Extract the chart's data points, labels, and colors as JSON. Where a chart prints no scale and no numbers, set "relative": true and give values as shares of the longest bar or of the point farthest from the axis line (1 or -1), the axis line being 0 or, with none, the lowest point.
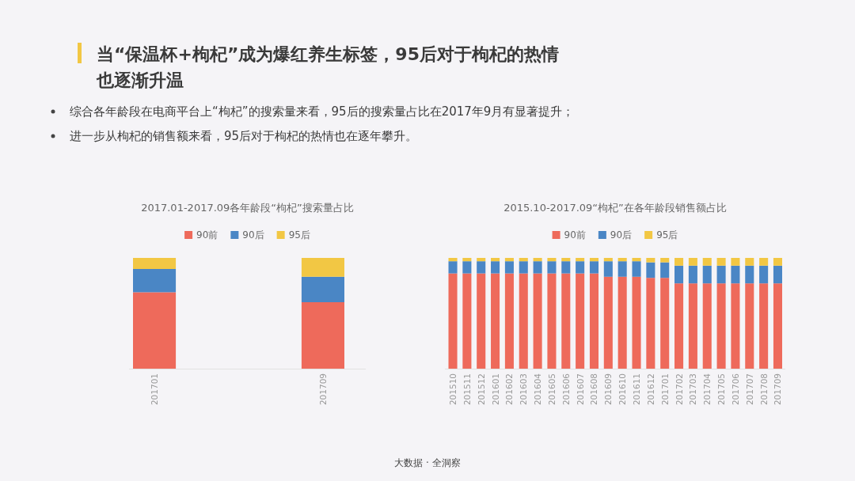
{
  "chart_data": [
    {
      "type": "other",
      "title": "当“保温杯+枸杞”成为爆红养生标签，95后对于枸杞的热情也逐渐升温",
      "annotations": [
        "综合各年龄段在电商平台上“枸杞”的搜索量来看，95后的搜索量占比在2017年9月有显著提升；",
        "进一步从枸杞的销售额来看，95后对于枸杞的热情也在逐年攀升。",
        "大数据 · 全洞察"
      ]
    },
    {
      "type": "bar",
      "title": "2017.01-2017.09各年龄段“枸杞”搜索量占比",
      "categories": [
        "201701",
        "201709"
      ],
      "stacked": true,
      "relative": true,
      "legend": "top",
      "series": [
        {
          "name": "90前",
          "color": "#ee6a5b",
          "values": [
            0.69,
            0.6
          ]
        },
        {
          "name": "90后",
          "color": "#4a86c5",
          "values": [
            0.21,
            0.23
          ]
        },
        {
          "name": "95后",
          "color": "#f2c744",
          "values": [
            0.1,
            0.17
          ]
        }
      ]
    },
    {
      "type": "bar",
      "title": "2015.10-2017.09“枸杞”在各年龄段销售额占比",
      "categories": [
        "201510",
        "201511",
        "201512",
        "201601",
        "201602",
        "201603",
        "201604",
        "201605",
        "201606",
        "201607",
        "201608",
        "201609",
        "201610",
        "201611",
        "201612",
        "201701",
        "201702",
        "201703",
        "201704",
        "201705",
        "201706",
        "201707",
        "201708",
        "201709"
      ],
      "stacked": true,
      "relative": true,
      "legend": "top",
      "series": [
        {
          "name": "90前",
          "color": "#ee6a5b",
          "values": [
            0.86,
            0.86,
            0.86,
            0.86,
            0.86,
            0.86,
            0.86,
            0.86,
            0.86,
            0.86,
            0.86,
            0.83,
            0.83,
            0.83,
            0.82,
            0.82,
            0.77,
            0.77,
            0.77,
            0.77,
            0.77,
            0.77,
            0.77,
            0.77
          ]
        },
        {
          "name": "90后",
          "color": "#4a86c5",
          "values": [
            0.11,
            0.11,
            0.11,
            0.11,
            0.11,
            0.11,
            0.11,
            0.11,
            0.11,
            0.11,
            0.11,
            0.14,
            0.14,
            0.14,
            0.14,
            0.14,
            0.16,
            0.16,
            0.16,
            0.16,
            0.16,
            0.16,
            0.16,
            0.16
          ]
        },
        {
          "name": "95后",
          "color": "#f2c744",
          "values": [
            0.03,
            0.03,
            0.03,
            0.03,
            0.03,
            0.03,
            0.03,
            0.03,
            0.03,
            0.03,
            0.03,
            0.03,
            0.03,
            0.03,
            0.04,
            0.04,
            0.07,
            0.07,
            0.07,
            0.07,
            0.07,
            0.07,
            0.07,
            0.07
          ]
        }
      ]
    }
  ]
}
